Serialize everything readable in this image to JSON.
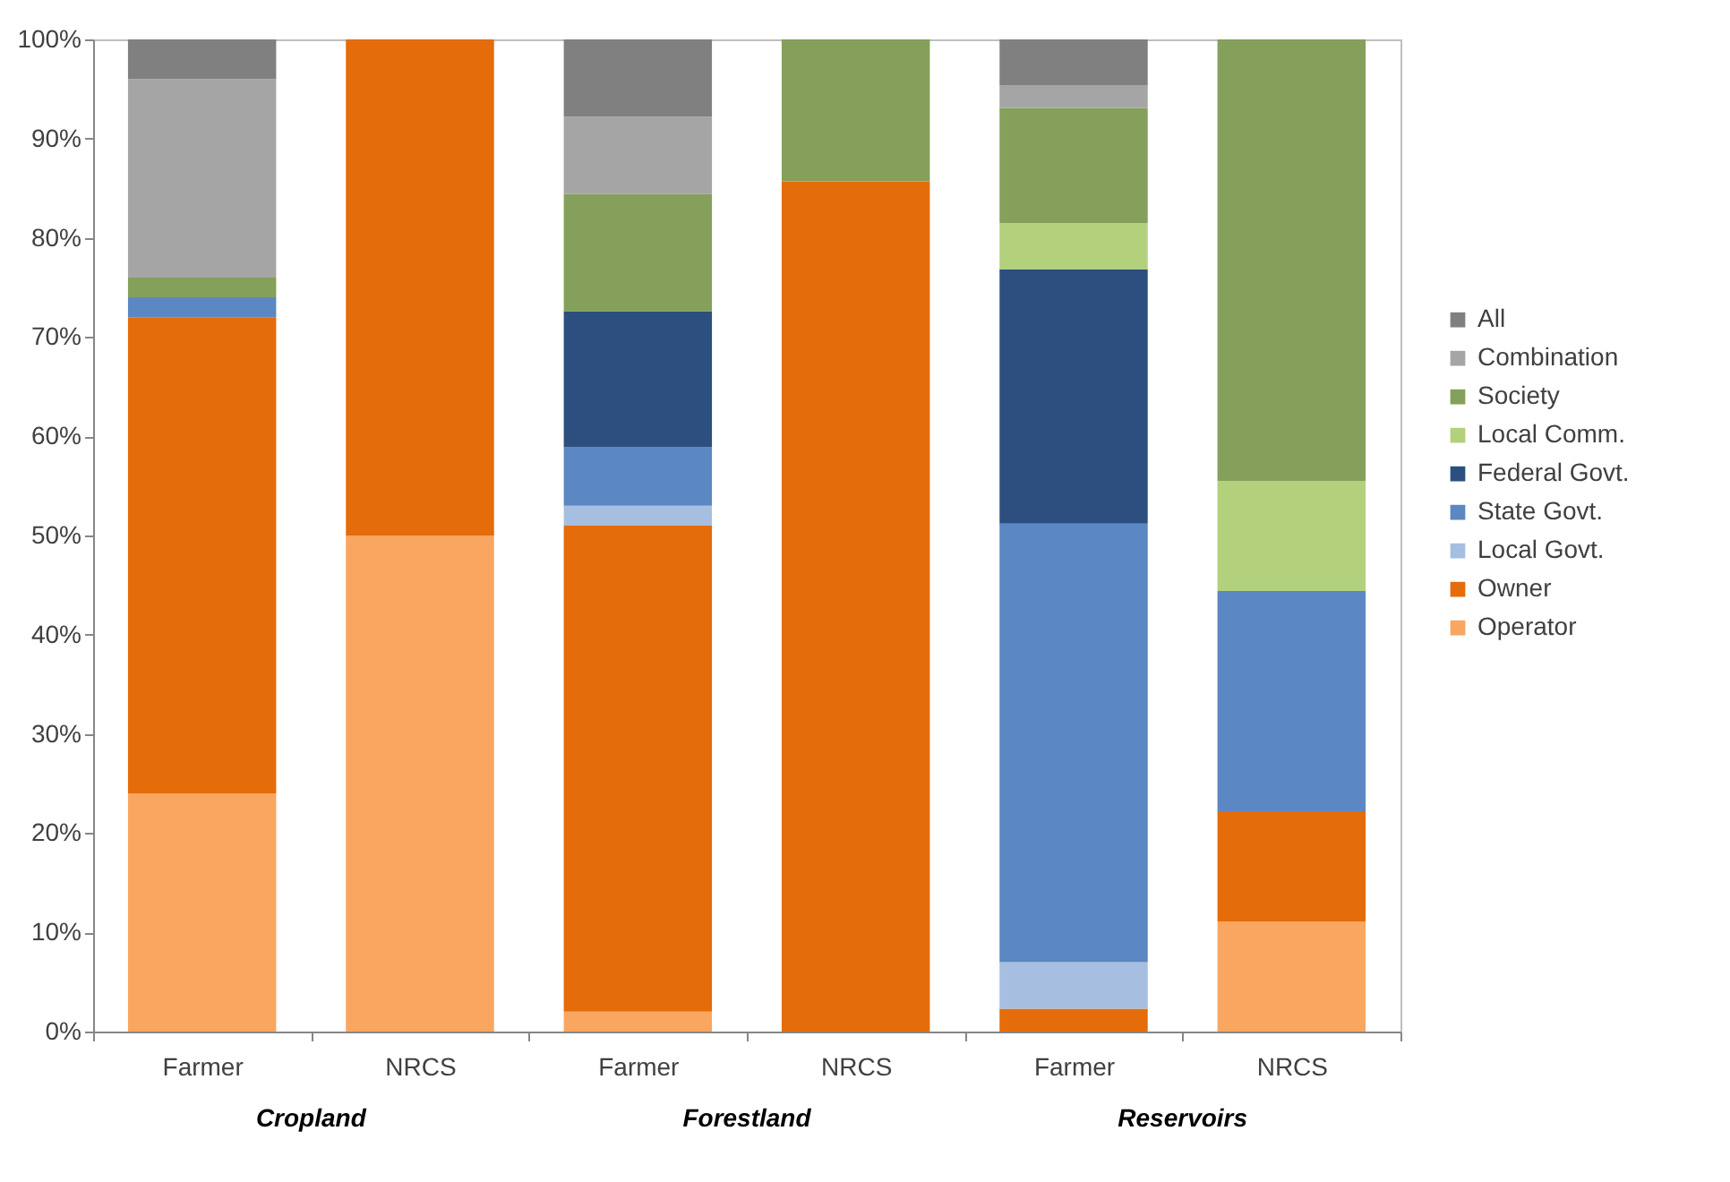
{
  "chart_data": {
    "type": "bar",
    "stacked": true,
    "categories": [
      "Farmer",
      "NRCS",
      "Farmer",
      "NRCS",
      "Farmer",
      "NRCS"
    ],
    "annotations": [
      "Cropland",
      "Forestland",
      "Reservoirs"
    ],
    "ylim": [
      0,
      100
    ],
    "yticks": [
      {
        "value": 0,
        "label": "0%"
      },
      {
        "value": 10,
        "label": "10%"
      },
      {
        "value": 20,
        "label": "20%"
      },
      {
        "value": 30,
        "label": "30%"
      },
      {
        "value": 40,
        "label": "40%"
      },
      {
        "value": 50,
        "label": "50%"
      },
      {
        "value": 60,
        "label": "60%"
      },
      {
        "value": 70,
        "label": "70%"
      },
      {
        "value": 80,
        "label": "80%"
      },
      {
        "value": 90,
        "label": "90%"
      },
      {
        "value": 100,
        "label": "100%"
      }
    ],
    "legend": "right",
    "series": [
      {
        "name": "Operator",
        "color": "#f9a660",
        "values": [
          24,
          50,
          2,
          0,
          0,
          11.1
        ]
      },
      {
        "name": "Owner",
        "color": "#e46c0a",
        "values": [
          48,
          50,
          49,
          85.7,
          2.3,
          11.1
        ]
      },
      {
        "name": "Local Govt.",
        "color": "#a6bfe0",
        "values": [
          0,
          0,
          2,
          0,
          4.7,
          0
        ]
      },
      {
        "name": "State Govt.",
        "color": "#5b87c2",
        "values": [
          2,
          0,
          5.9,
          0,
          44.2,
          22.2
        ]
      },
      {
        "name": "Federal Govt.",
        "color": "#2c4f80",
        "values": [
          0,
          0,
          13.7,
          0,
          25.6,
          0
        ]
      },
      {
        "name": "Local Comm.",
        "color": "#b3d07d",
        "values": [
          0,
          0,
          0,
          0,
          4.7,
          11.1
        ]
      },
      {
        "name": "Society",
        "color": "#84a05a",
        "values": [
          2,
          0,
          11.8,
          14.3,
          11.6,
          44.5
        ]
      },
      {
        "name": "Combination",
        "color": "#a5a5a5",
        "values": [
          20,
          0,
          7.8,
          0,
          2.3,
          0
        ]
      },
      {
        "name": "All",
        "color": "#808080",
        "values": [
          4,
          0,
          7.8,
          0,
          4.6,
          0
        ]
      }
    ]
  }
}
